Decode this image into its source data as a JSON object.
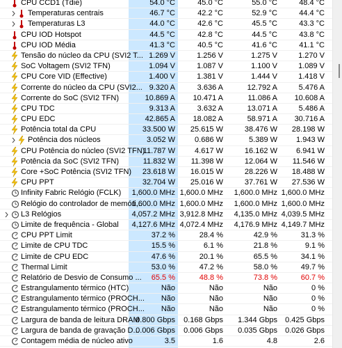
{
  "table": {
    "rows": [
      [
        "CPU CCD1 (Tdie)",
        "54.0 °C",
        "45.0 °C",
        "55.0 °C",
        "48.4 °C"
      ],
      [
        "Temperaturas centrais",
        "46.7 °C",
        "42.2 °C",
        "52.9 °C",
        "44.4 °C"
      ],
      [
        "Temperaturas L3",
        "44.0 °C",
        "42.6 °C",
        "45.5 °C",
        "43.3 °C"
      ],
      [
        "CPU IOD Hotspot",
        "44.5 °C",
        "42.8 °C",
        "44.5 °C",
        "43.8 °C"
      ],
      [
        "CPU IOD Média",
        "41.3 °C",
        "40.5 °C",
        "41.6 °C",
        "41.1 °C"
      ],
      [
        "Tensão do núcleo da CPU (SVI2 T...",
        "1.269 V",
        "1.256 V",
        "1.275 V",
        "1.270 V"
      ],
      [
        "SoC Voltagem (SVI2 TFN)",
        "1.094 V",
        "1.087 V",
        "1.100 V",
        "1.089 V"
      ],
      [
        "CPU Core VID (Effective)",
        "1.400 V",
        "1.381 V",
        "1.444 V",
        "1.418 V"
      ],
      [
        "Corrente do núcleo da CPU (SVI2...",
        "9.320 A",
        "3.636 A",
        "12.792 A",
        "5.476 A"
      ],
      [
        "Corrente do SoC (SVI2 TFN)",
        "10.869 A",
        "10.471 A",
        "11.086 A",
        "10.608 A"
      ],
      [
        "CPU TDC",
        "9.313 A",
        "3.632 A",
        "13.071 A",
        "5.486 A"
      ],
      [
        "CPU EDC",
        "42.865 A",
        "18.082 A",
        "58.971 A",
        "30.716 A"
      ],
      [
        "Potência total da CPU",
        "33.500 W",
        "25.615 W",
        "38.476 W",
        "28.198 W"
      ],
      [
        "Potência dos núcleos",
        "3.052 W",
        "0.686 W",
        "5.389 W",
        "1.943 W"
      ],
      [
        "CPU Potência do núcleo (SVI2 TFN)",
        "11.787 W",
        "4.617 W",
        "16.162 W",
        "6.941 W"
      ],
      [
        "Potência da SoC (SVI2 TFN)",
        "11.832 W",
        "11.398 W",
        "12.064 W",
        "11.546 W"
      ],
      [
        "Core +SoC Potência (SVI2 TFN)",
        "23.618 W",
        "16.015 W",
        "28.226 W",
        "18.488 W"
      ],
      [
        "CPU PPT",
        "32.704 W",
        "25.016 W",
        "37.761 W",
        "27.536 W"
      ],
      [
        "Infinity Fabric Relógio (FCLK)",
        "1,600.0 MHz",
        "1,600.0 MHz",
        "1,600.0 MHz",
        "1,600.0 MHz"
      ],
      [
        "Relógio do controlador de memóri...",
        "1,600.0 MHz",
        "1,600.0 MHz",
        "1,600.0 MHz",
        "1,600.0 MHz"
      ],
      [
        "L3 Relógios",
        "4,057.2 MHz",
        "3,912.8 MHz",
        "4,135.0 MHz",
        "4,039.5 MHz"
      ],
      [
        "Limite de frequência - Global",
        "4,127.6 MHz",
        "4,072.4 MHz",
        "4,176.9 MHz",
        "4,149.7 MHz"
      ],
      [
        "CPU PPT Limit",
        "37.2 %",
        "28.4 %",
        "42.9 %",
        "31.3 %"
      ],
      [
        "Limite de CPU TDC",
        "15.5 %",
        "6.1 %",
        "21.8 %",
        "9.1 %"
      ],
      [
        "Limite de CPU EDC",
        "47.6 %",
        "20.1 %",
        "65.5 %",
        "34.1 %"
      ],
      [
        "Thermal Limit",
        "53.0 %",
        "47.2 %",
        "58.0 %",
        "49.7 %"
      ],
      [
        "Relatório de Desvio de Consumo ...",
        "65.5 %",
        "48.8 %",
        "73.8 %",
        "60.7 %"
      ],
      [
        "Estrangulamento térmico (HTC)",
        "Não",
        "Não",
        "Não",
        "0 %"
      ],
      [
        "Estrangulamento térmico (PROCH...",
        "Não",
        "Não",
        "Não",
        "0 %"
      ],
      [
        "Estrangulamento térmico (PROCH...",
        "Não",
        "Não",
        "Não",
        "0 %"
      ],
      [
        "Largura de banda de leitura DRAM",
        "0.800 Gbps",
        "0.168 Gbps",
        "1.344 Gbps",
        "0.425 Gbps"
      ],
      [
        "Largura de banda de gravação D...",
        "0.006 Gbps",
        "0.006 Gbps",
        "0.035 Gbps",
        "0.026 Gbps"
      ],
      [
        "Contagem média de núcleo ativo",
        "3.5",
        "1.6",
        "4.8",
        "2.6"
      ]
    ]
  }
}
